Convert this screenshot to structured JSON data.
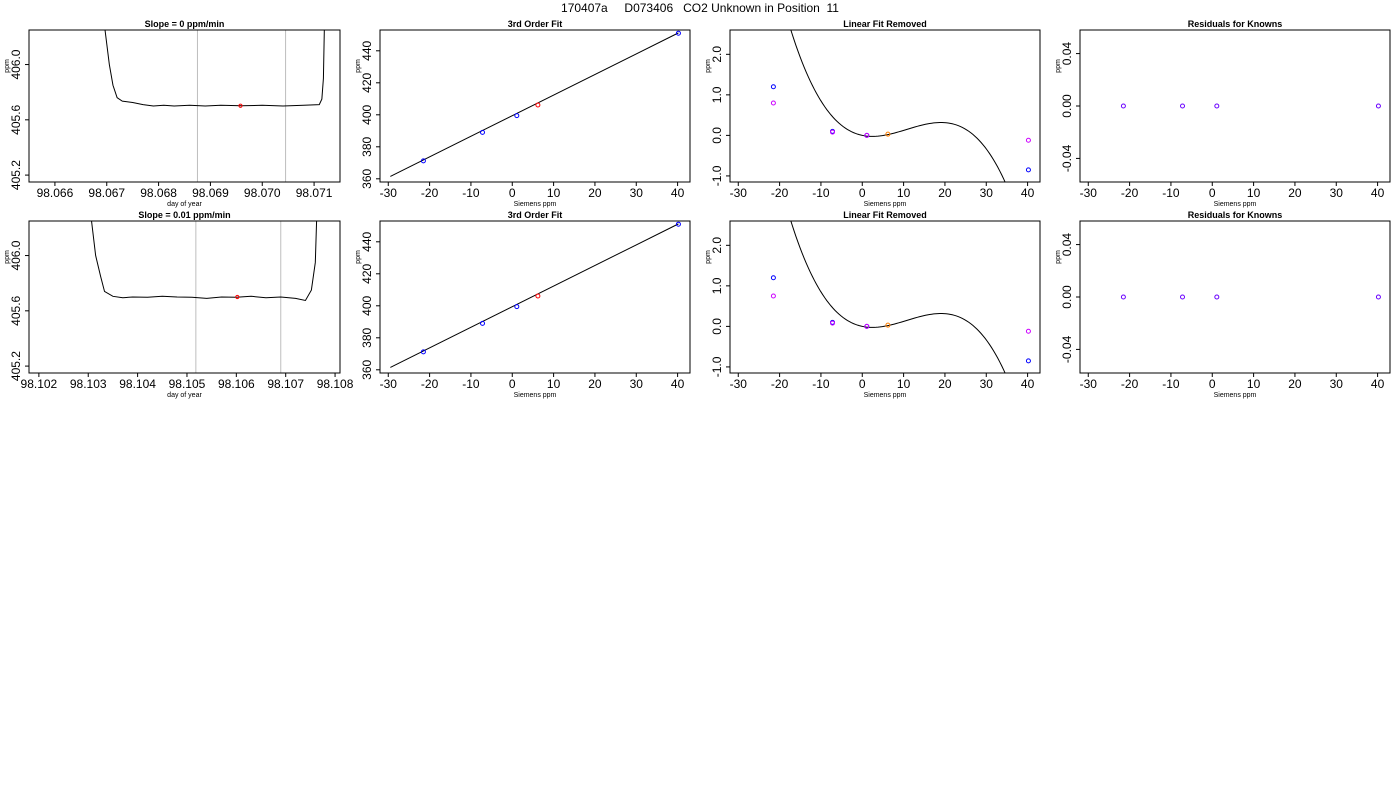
{
  "title": "170407a     D073406   CO2 Unknown in Position  11",
  "chart_data": [
    {
      "panel": "trace",
      "type": "line",
      "title": "Slope =  0  ppm/min",
      "xlabel": "day of year",
      "ylabel": "ppm",
      "xlim": [
        98.0655,
        98.0715
      ],
      "ylim": [
        405.15,
        406.25
      ],
      "xticks": [
        "98.066",
        "98.067",
        "98.068",
        "98.069",
        "98.070",
        "98.071"
      ],
      "xtick_values": [
        98.066,
        98.067,
        98.068,
        98.069,
        98.07,
        98.071
      ],
      "yticks": [
        "405.2",
        "405.6",
        "406.0"
      ],
      "ytick_values": [
        405.2,
        405.6,
        406.0
      ],
      "vlines": [
        98.06875,
        98.07045
      ],
      "vline_color": "#bebebe",
      "marker": {
        "x": 98.06958,
        "y": 405.702,
        "color": "#ff0000"
      },
      "trace": [
        [
          98.06695,
          406.3
        ],
        [
          98.06705,
          406.0
        ],
        [
          98.06712,
          405.85
        ],
        [
          98.0672,
          405.76
        ],
        [
          98.0673,
          405.735
        ],
        [
          98.0675,
          405.725
        ],
        [
          98.0677,
          405.71
        ],
        [
          98.0679,
          405.7
        ],
        [
          98.0681,
          405.705
        ],
        [
          98.0683,
          405.7
        ],
        [
          98.0686,
          405.705
        ],
        [
          98.0689,
          405.7
        ],
        [
          98.0692,
          405.705
        ],
        [
          98.0696,
          405.702
        ],
        [
          98.07,
          405.705
        ],
        [
          98.0704,
          405.7
        ],
        [
          98.0708,
          405.705
        ],
        [
          98.0711,
          405.71
        ],
        [
          98.07115,
          405.75
        ],
        [
          98.07118,
          405.9
        ],
        [
          98.0712,
          406.3
        ]
      ]
    },
    {
      "panel": "fit",
      "type": "scatter",
      "title": "3rd Order Fit",
      "xlabel": "Siemens ppm",
      "ylabel": "ppm",
      "xlim": [
        -32,
        43
      ],
      "ylim": [
        358,
        453
      ],
      "xticks": [
        "-30",
        "-20",
        "-10",
        "0",
        "10",
        "20",
        "30",
        "40"
      ],
      "xtick_values": [
        -30,
        -20,
        -10,
        0,
        10,
        20,
        30,
        40
      ],
      "yticks": [
        "360",
        "380",
        "400",
        "420",
        "440"
      ],
      "ytick_values": [
        360,
        380,
        400,
        420,
        440
      ],
      "line": {
        "x": [
          -29.5,
          40.2
        ],
        "y": [
          361.5,
          451.2
        ]
      },
      "points": [
        {
          "x": -21.5,
          "y": 371.2,
          "color": "#0000ff"
        },
        {
          "x": -7.2,
          "y": 389.0,
          "color": "#0000ff"
        },
        {
          "x": 1.1,
          "y": 399.5,
          "color": "#0000ff"
        },
        {
          "x": 40.2,
          "y": 451.0,
          "color": "#0000ff"
        },
        {
          "x": 6.2,
          "y": 406.1,
          "color": "#ff0000"
        }
      ]
    },
    {
      "panel": "linear-removed",
      "type": "scatter",
      "title": "Linear Fit Removed",
      "xlabel": "Siemens ppm",
      "ylabel": "ppm",
      "xlim": [
        -32,
        43
      ],
      "ylim": [
        -1.15,
        2.6
      ],
      "xticks": [
        "-30",
        "-20",
        "-10",
        "0",
        "10",
        "20",
        "30",
        "40"
      ],
      "xtick_values": [
        -30,
        -20,
        -10,
        0,
        10,
        20,
        30,
        40
      ],
      "yticks": [
        "-1.0",
        "0.0",
        "1.0",
        "2.0"
      ],
      "ytick_values": [
        -1.0,
        0.0,
        1.0,
        2.0
      ],
      "curve": {
        "c0": 0.0,
        "c1": -0.0213,
        "c2": 0.00487,
        "c3": -0.000151,
        "xrange": [
          -29.5,
          40.2
        ]
      },
      "points": [
        {
          "x": -21.5,
          "y": 1.2,
          "color": "#0000ff"
        },
        {
          "x": -7.2,
          "y": 0.1,
          "color": "#0000ff"
        },
        {
          "x": 1.1,
          "y": 0.0,
          "color": "#0000ff"
        },
        {
          "x": 40.2,
          "y": -0.85,
          "color": "#0000ff"
        },
        {
          "x": -21.5,
          "y": 0.8,
          "color": "#cc00ff"
        },
        {
          "x": -7.2,
          "y": 0.08,
          "color": "#cc00ff"
        },
        {
          "x": 1.1,
          "y": 0.0,
          "color": "#cc00ff"
        },
        {
          "x": 40.2,
          "y": -0.12,
          "color": "#cc00ff"
        },
        {
          "x": 6.2,
          "y": 0.03,
          "color": "#ff8000"
        }
      ]
    },
    {
      "panel": "residuals",
      "type": "scatter",
      "title": "Residuals for Knowns",
      "xlabel": "Siemens ppm",
      "ylabel": "ppm",
      "xlim": [
        -32,
        43
      ],
      "ylim": [
        -0.058,
        0.058
      ],
      "xticks": [
        "-30",
        "-20",
        "-10",
        "0",
        "10",
        "20",
        "30",
        "40"
      ],
      "xtick_values": [
        -30,
        -20,
        -10,
        0,
        10,
        20,
        30,
        40
      ],
      "yticks": [
        "-0.04",
        "0.00",
        "0.04"
      ],
      "ytick_values": [
        -0.04,
        0.0,
        0.04
      ],
      "points": [
        {
          "x": -21.5,
          "y": 0.0,
          "color": "#6a00ff"
        },
        {
          "x": -7.2,
          "y": 0.0,
          "color": "#6a00ff"
        },
        {
          "x": 1.1,
          "y": 0.0,
          "color": "#6a00ff"
        },
        {
          "x": 40.2,
          "y": 0.0,
          "color": "#6a00ff"
        }
      ]
    },
    {
      "panel": "trace",
      "type": "line",
      "title": "Slope =  0.01  ppm/min",
      "xlabel": "day of year",
      "ylabel": "ppm",
      "xlim": [
        98.1018,
        98.1081
      ],
      "ylim": [
        405.15,
        406.25
      ],
      "xticks": [
        "98.102",
        "98.103",
        "98.104",
        "98.105",
        "98.106",
        "98.107",
        "98.108"
      ],
      "xtick_values": [
        98.102,
        98.103,
        98.104,
        98.105,
        98.106,
        98.107,
        98.108
      ],
      "yticks": [
        "405.2",
        "405.6",
        "406.0"
      ],
      "ytick_values": [
        405.2,
        405.6,
        406.0
      ],
      "vlines": [
        98.10518,
        98.1069
      ],
      "vline_color": "#bebebe",
      "marker": {
        "x": 98.10602,
        "y": 405.7,
        "color": "#ff0000"
      },
      "trace": [
        [
          98.10305,
          406.3
        ],
        [
          98.10315,
          406.0
        ],
        [
          98.10325,
          405.85
        ],
        [
          98.10333,
          405.74
        ],
        [
          98.1035,
          405.705
        ],
        [
          98.1037,
          405.695
        ],
        [
          98.1039,
          405.7
        ],
        [
          98.1042,
          405.698
        ],
        [
          98.1045,
          405.705
        ],
        [
          98.1048,
          405.7
        ],
        [
          98.1051,
          405.698
        ],
        [
          98.1054,
          405.69
        ],
        [
          98.1057,
          405.7
        ],
        [
          98.106,
          405.698
        ],
        [
          98.1063,
          405.705
        ],
        [
          98.1066,
          405.695
        ],
        [
          98.1069,
          405.7
        ],
        [
          98.1072,
          405.69
        ],
        [
          98.1074,
          405.675
        ],
        [
          98.10752,
          405.75
        ],
        [
          98.1076,
          405.95
        ],
        [
          98.10763,
          406.3
        ]
      ]
    },
    {
      "panel": "fit",
      "type": "scatter",
      "title": "3rd Order Fit",
      "xlabel": "Siemens ppm",
      "ylabel": "ppm",
      "xlim": [
        -32,
        43
      ],
      "ylim": [
        358,
        453
      ],
      "xticks": [
        "-30",
        "-20",
        "-10",
        "0",
        "10",
        "20",
        "30",
        "40"
      ],
      "xtick_values": [
        -30,
        -20,
        -10,
        0,
        10,
        20,
        30,
        40
      ],
      "yticks": [
        "360",
        "380",
        "400",
        "420",
        "440"
      ],
      "ytick_values": [
        360,
        380,
        400,
        420,
        440
      ],
      "line": {
        "x": [
          -29.5,
          40.2
        ],
        "y": [
          361.5,
          451.2
        ]
      },
      "points": [
        {
          "x": -21.5,
          "y": 371.2,
          "color": "#0000ff"
        },
        {
          "x": -7.2,
          "y": 389.0,
          "color": "#0000ff"
        },
        {
          "x": 1.1,
          "y": 399.5,
          "color": "#0000ff"
        },
        {
          "x": 40.2,
          "y": 451.0,
          "color": "#0000ff"
        },
        {
          "x": 6.2,
          "y": 406.1,
          "color": "#ff0000"
        }
      ]
    },
    {
      "panel": "linear-removed",
      "type": "scatter",
      "title": "Linear Fit Removed",
      "xlabel": "Siemens ppm",
      "ylabel": "ppm",
      "xlim": [
        -32,
        43
      ],
      "ylim": [
        -1.15,
        2.6
      ],
      "xticks": [
        "-30",
        "-20",
        "-10",
        "0",
        "10",
        "20",
        "30",
        "40"
      ],
      "xtick_values": [
        -30,
        -20,
        -10,
        0,
        10,
        20,
        30,
        40
      ],
      "yticks": [
        "-1.0",
        "0.0",
        "1.0",
        "2.0"
      ],
      "ytick_values": [
        -1.0,
        0.0,
        1.0,
        2.0
      ],
      "curve": {
        "c0": 0.0,
        "c1": -0.0213,
        "c2": 0.00487,
        "c3": -0.000151,
        "xrange": [
          -29.5,
          40.2
        ]
      },
      "points": [
        {
          "x": -21.5,
          "y": 1.2,
          "color": "#0000ff"
        },
        {
          "x": -7.2,
          "y": 0.1,
          "color": "#0000ff"
        },
        {
          "x": 1.1,
          "y": 0.0,
          "color": "#0000ff"
        },
        {
          "x": 40.2,
          "y": -0.85,
          "color": "#0000ff"
        },
        {
          "x": -21.5,
          "y": 0.75,
          "color": "#cc00ff"
        },
        {
          "x": -7.2,
          "y": 0.08,
          "color": "#cc00ff"
        },
        {
          "x": 1.1,
          "y": 0.0,
          "color": "#cc00ff"
        },
        {
          "x": 40.2,
          "y": -0.12,
          "color": "#cc00ff"
        },
        {
          "x": 6.2,
          "y": 0.03,
          "color": "#ff8000"
        }
      ]
    },
    {
      "panel": "residuals",
      "type": "scatter",
      "title": "Residuals for Knowns",
      "xlabel": "Siemens ppm",
      "ylabel": "ppm",
      "xlim": [
        -32,
        43
      ],
      "ylim": [
        -0.058,
        0.058
      ],
      "xticks": [
        "-30",
        "-20",
        "-10",
        "0",
        "10",
        "20",
        "30",
        "40"
      ],
      "xtick_values": [
        -30,
        -20,
        -10,
        0,
        10,
        20,
        30,
        40
      ],
      "yticks": [
        "-0.04",
        "0.00",
        "0.04"
      ],
      "ytick_values": [
        -0.04,
        0.0,
        0.04
      ],
      "points": [
        {
          "x": -21.5,
          "y": 0.0,
          "color": "#6a00ff"
        },
        {
          "x": -7.2,
          "y": 0.0,
          "color": "#6a00ff"
        },
        {
          "x": 1.1,
          "y": 0.0,
          "color": "#6a00ff"
        },
        {
          "x": 40.2,
          "y": 0.0,
          "color": "#6a00ff"
        }
      ]
    }
  ]
}
